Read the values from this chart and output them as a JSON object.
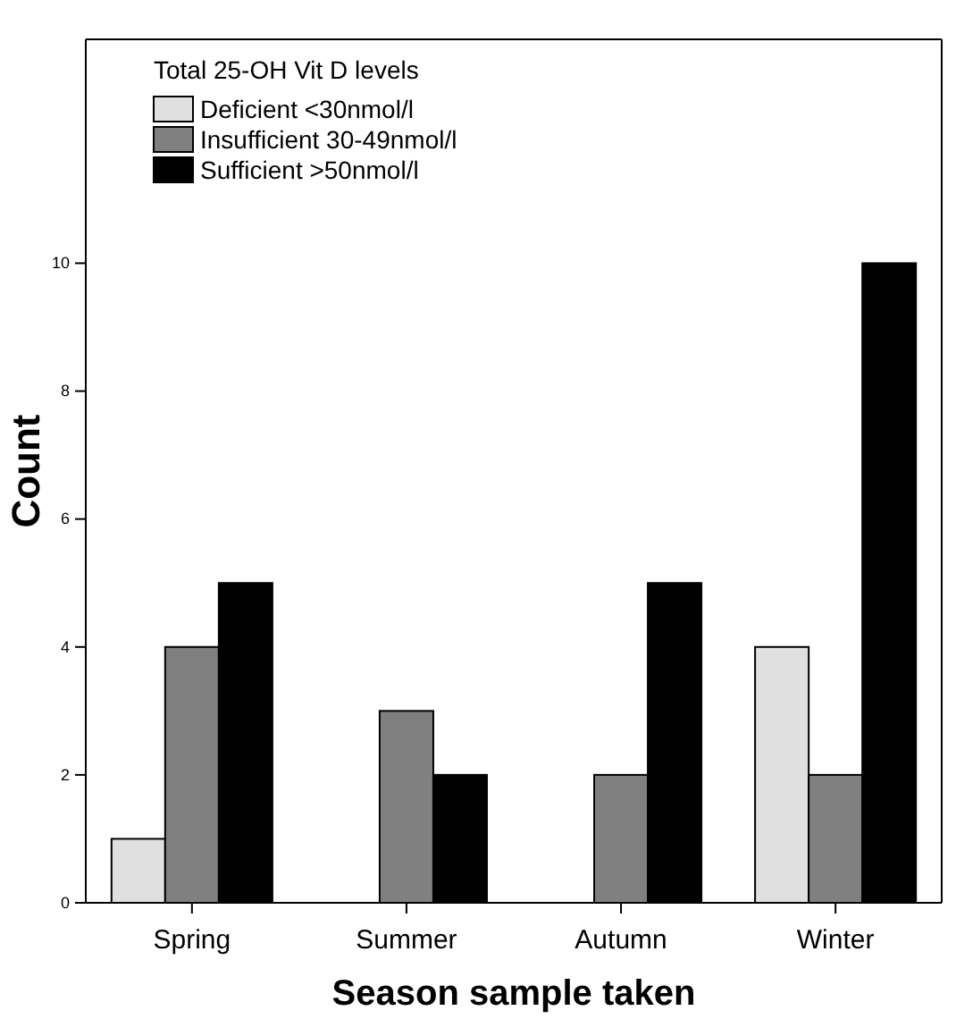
{
  "chart_data": {
    "type": "bar",
    "xlabel": "Season sample taken",
    "ylabel": "Count",
    "legend_title": "Total 25-OH Vit D levels",
    "categories": [
      "Spring",
      "Summer",
      "Autumn",
      "Winter"
    ],
    "series": [
      {
        "name": "Deficient <30nmol/l",
        "color": "#e0e0e0",
        "values": [
          1,
          0,
          0,
          4
        ]
      },
      {
        "name": "Insufficient 30-49nmol/l",
        "color": "#808080",
        "values": [
          4,
          3,
          2,
          2
        ]
      },
      {
        "name": "Sufficient >50nmol/l",
        "color": "#000000",
        "values": [
          5,
          2,
          5,
          10
        ]
      }
    ],
    "ylim": [
      0,
      13.5
    ],
    "yticks": [
      0,
      2,
      4,
      6,
      8,
      10
    ],
    "grid": false,
    "legend": "top left"
  }
}
